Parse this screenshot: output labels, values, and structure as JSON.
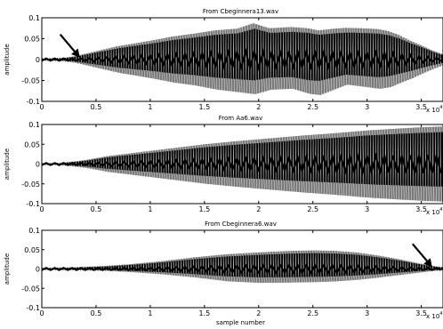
{
  "chart_data": [
    {
      "type": "line",
      "title": "From Cbeginnera13.wav",
      "xlabel": "",
      "ylabel": "amplitude",
      "xlim": [
        0,
        37000
      ],
      "ylim": [
        -0.1,
        0.1
      ],
      "x_tick_labels": [
        "0",
        "0.5",
        "1",
        "1.5",
        "2",
        "2.5",
        "3",
        "3.5"
      ],
      "x_ticks": [
        0,
        5000,
        10000,
        15000,
        20000,
        25000,
        30000,
        35000
      ],
      "x_multiplier": "x 10",
      "x_multiplier_exponent": "4",
      "y_ticks": [
        0.1,
        0.05,
        0,
        -0.05,
        -0.1
      ],
      "y_tick_labels": [
        "0.1",
        "0.05",
        "0",
        "-0.05",
        "-0.1"
      ],
      "annotations": [
        {
          "type": "arrow",
          "x": 3500,
          "y": 0.005
        }
      ],
      "envelope": {
        "x": [
          0,
          1000,
          2000,
          3000,
          5000,
          7000,
          10000,
          12000,
          14000,
          16000,
          18000,
          19500,
          21000,
          23000,
          24500,
          25500,
          27000,
          28000,
          29500,
          31000,
          32000,
          33000,
          34000,
          35000,
          36000,
          37000
        ],
        "upper": [
          0.002,
          0.003,
          0.004,
          0.008,
          0.02,
          0.032,
          0.045,
          0.055,
          0.062,
          0.07,
          0.074,
          0.087,
          0.075,
          0.078,
          0.075,
          0.07,
          0.074,
          0.076,
          0.075,
          0.073,
          0.068,
          0.058,
          0.045,
          0.034,
          0.022,
          0.012
        ],
        "lower": [
          -0.002,
          -0.003,
          -0.004,
          -0.008,
          -0.02,
          -0.032,
          -0.045,
          -0.055,
          -0.062,
          -0.072,
          -0.078,
          -0.083,
          -0.072,
          -0.07,
          -0.082,
          -0.085,
          -0.07,
          -0.06,
          -0.065,
          -0.07,
          -0.066,
          -0.055,
          -0.045,
          -0.033,
          -0.022,
          -0.012
        ]
      }
    },
    {
      "type": "line",
      "title": "From Aa6.wav",
      "xlabel": "",
      "ylabel": "amplitude",
      "xlim": [
        0,
        37000
      ],
      "ylim": [
        -0.1,
        0.1
      ],
      "x_tick_labels": [
        "0",
        "0.5",
        "1",
        "1.5",
        "2",
        "2.5",
        "3",
        "3.5"
      ],
      "x_ticks": [
        0,
        5000,
        10000,
        15000,
        20000,
        25000,
        30000,
        35000
      ],
      "x_multiplier": "x 10",
      "x_multiplier_exponent": "4",
      "y_ticks": [
        0.1,
        0.05,
        0,
        -0.05,
        -0.1
      ],
      "y_tick_labels": [
        "0.1",
        "0.05",
        "0",
        "-0.05",
        "-0.1"
      ],
      "annotations": [],
      "envelope": {
        "x": [
          0,
          1500,
          2500,
          4000,
          6000,
          9000,
          12000,
          15000,
          18000,
          21000,
          24000,
          27000,
          30000,
          33000,
          35000,
          37000
        ],
        "upper": [
          0.001,
          0.002,
          0.005,
          0.01,
          0.02,
          0.03,
          0.04,
          0.05,
          0.058,
          0.065,
          0.072,
          0.078,
          0.085,
          0.09,
          0.093,
          0.095
        ],
        "lower": [
          -0.001,
          -0.002,
          -0.005,
          -0.01,
          -0.02,
          -0.03,
          -0.04,
          -0.05,
          -0.058,
          -0.065,
          -0.072,
          -0.078,
          -0.085,
          -0.09,
          -0.093,
          -0.095
        ]
      }
    },
    {
      "type": "line",
      "title": "From Cbeginnera6.wav",
      "xlabel": "sample number",
      "ylabel": "amplitude",
      "xlim": [
        0,
        37000
      ],
      "ylim": [
        -0.1,
        0.1
      ],
      "x_tick_labels": [
        "0",
        "0.5",
        "1",
        "1.5",
        "2",
        "2.5",
        "3",
        "3.5"
      ],
      "x_ticks": [
        0,
        5000,
        10000,
        15000,
        20000,
        25000,
        30000,
        35000
      ],
      "x_multiplier": "x 10",
      "x_multiplier_exponent": "4",
      "y_ticks": [
        0.1,
        0.05,
        0,
        -0.05,
        -0.1
      ],
      "y_tick_labels": [
        "0.1",
        "0.05",
        "0",
        "-0.05",
        "-0.1"
      ],
      "annotations": [
        {
          "type": "arrow",
          "x": 36000,
          "y": 0.005
        }
      ],
      "envelope": {
        "x": [
          0,
          3000,
          6000,
          8000,
          11000,
          14000,
          17000,
          20000,
          23000,
          25000,
          27000,
          29000,
          31000,
          33000,
          34500,
          36000,
          37000
        ],
        "upper": [
          0.002,
          0.004,
          0.008,
          0.012,
          0.02,
          0.03,
          0.038,
          0.043,
          0.047,
          0.048,
          0.047,
          0.043,
          0.035,
          0.025,
          0.016,
          0.008,
          0.004
        ],
        "lower": [
          -0.002,
          -0.003,
          -0.005,
          -0.008,
          -0.014,
          -0.022,
          -0.032,
          -0.036,
          -0.035,
          -0.034,
          -0.032,
          -0.028,
          -0.022,
          -0.015,
          -0.01,
          -0.005,
          -0.003
        ]
      }
    }
  ]
}
